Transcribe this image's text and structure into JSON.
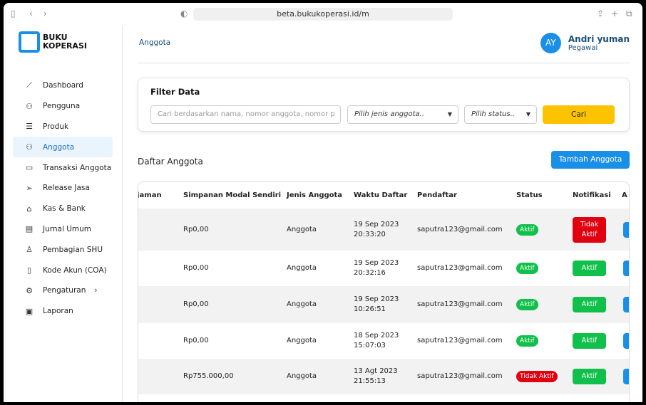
{
  "browser": {
    "url": "beta.bukukoperasi.id/m"
  },
  "logo": {
    "line1": "BUKU",
    "line2": "KOPERASI"
  },
  "sidebar": {
    "items": [
      {
        "label": "Dashboard",
        "icon": "chart-line-icon",
        "active": false
      },
      {
        "label": "Pengguna",
        "icon": "users-gear-icon",
        "active": false
      },
      {
        "label": "Produk",
        "icon": "list-icon",
        "active": false
      },
      {
        "label": "Anggota",
        "icon": "users-icon",
        "active": true
      },
      {
        "label": "Transaksi Anggota",
        "icon": "credit-card-icon",
        "active": false
      },
      {
        "label": "Release Jasa",
        "icon": "send-icon",
        "active": false
      },
      {
        "label": "Kas & Bank",
        "icon": "bank-icon",
        "active": false
      },
      {
        "label": "Jurnal Umum",
        "icon": "book-icon",
        "active": false
      },
      {
        "label": "Pembagian SHU",
        "icon": "user-share-icon",
        "active": false
      },
      {
        "label": "Kode Akun (COA)",
        "icon": "clipboard-icon",
        "active": false
      },
      {
        "label": "Pengaturan",
        "icon": "gear-icon",
        "active": false
      },
      {
        "label": "Laporan",
        "icon": "report-icon",
        "active": false
      }
    ]
  },
  "header": {
    "breadcrumb": "Anggota",
    "user": {
      "initials": "AY",
      "name": "Andri yuman",
      "role": "Pegawai"
    }
  },
  "filter": {
    "title": "Filter Data",
    "search_placeholder": "Cari berdasarkan nama, nomor anggota, nomor p",
    "jenis_placeholder": "Pilih jenis anggota..",
    "status_placeholder": "Pilih status..",
    "search_button": "Cari"
  },
  "list": {
    "title": "Daftar Anggota",
    "add_button": "Tambah Anggota"
  },
  "table": {
    "columns": [
      "njaman",
      "Simpanan Modal Sendiri",
      "Jenis Anggota",
      "Waktu Daftar",
      "Pendaftar",
      "Status",
      "Notifikasi",
      "A"
    ],
    "rows": [
      {
        "simpanan": "Rp0,00",
        "jenis": "Anggota",
        "date": "19 Sep 2023",
        "time": "20:33:20",
        "pendaftar": "saputra123@gmail.com",
        "status": "Aktif",
        "notifikasi": "Tidak Aktif"
      },
      {
        "simpanan": "Rp0,00",
        "jenis": "Anggota",
        "date": "19 Sep 2023",
        "time": "20:32:16",
        "pendaftar": "saputra123@gmail.com",
        "status": "Aktif",
        "notifikasi": "Aktif"
      },
      {
        "simpanan": "Rp0,00",
        "jenis": "Anggota",
        "date": "19 Sep 2023",
        "time": "10:26:51",
        "pendaftar": "saputra123@gmail.com",
        "status": "Aktif",
        "notifikasi": "Aktif"
      },
      {
        "simpanan": "Rp0,00",
        "jenis": "Anggota",
        "date": "18 Sep 2023",
        "time": "15:07:03",
        "pendaftar": "saputra123@gmail.com",
        "status": "Aktif",
        "notifikasi": "Aktif"
      },
      {
        "simpanan": "Rp755.000,00",
        "jenis": "Anggota",
        "date": "13 Agt 2023",
        "time": "21:55:13",
        "pendaftar": "saputra123@gmail.com",
        "status": "Tidak Aktif",
        "notifikasi": "Aktif"
      }
    ]
  },
  "colors": {
    "primary": "#1a8fe8",
    "accent": "#fdc300",
    "success": "#10c04a",
    "danger": "#e00010"
  }
}
